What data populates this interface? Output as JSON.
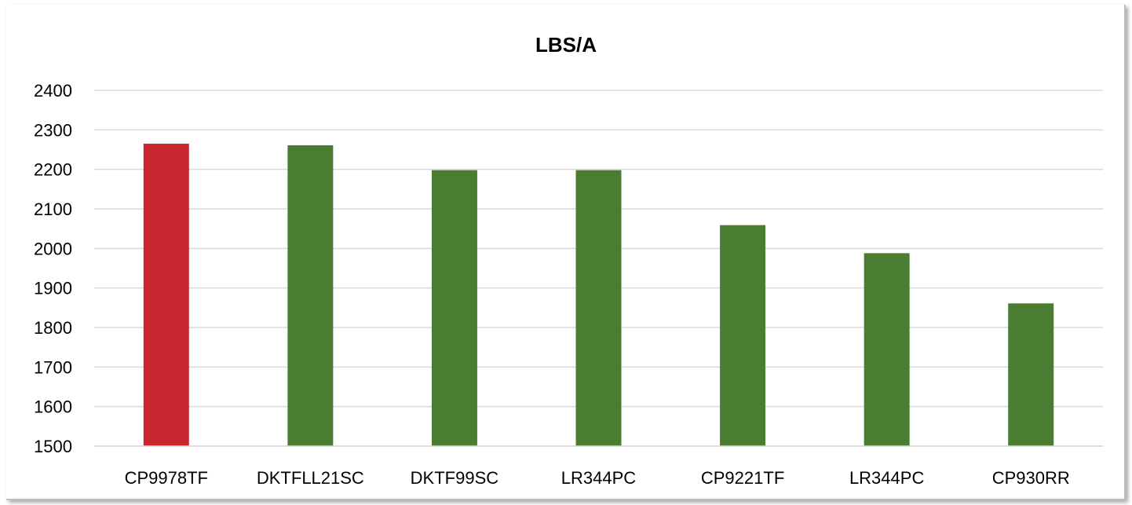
{
  "chart_data": {
    "type": "bar",
    "title": "LBS/A",
    "categories": [
      "CP9978TF",
      "DKTFLL21SC",
      "DKTF99SC",
      "LR344PC",
      "CP9221TF",
      "LR344PC",
      "CP930RR"
    ],
    "values": [
      2265,
      2261,
      2198,
      2198,
      2059,
      1988,
      1861
    ],
    "bar_colors": [
      "#C9252F",
      "#4A7D32",
      "#4A7D32",
      "#4A7D32",
      "#4A7D32",
      "#4A7D32",
      "#4A7D32"
    ],
    "ylim": [
      1500,
      2400
    ],
    "yticks": [
      "1500",
      "1600",
      "1700",
      "1800",
      "1900",
      "2000",
      "2100",
      "2200",
      "2300",
      "2400"
    ],
    "grid": true,
    "legend": "none"
  }
}
